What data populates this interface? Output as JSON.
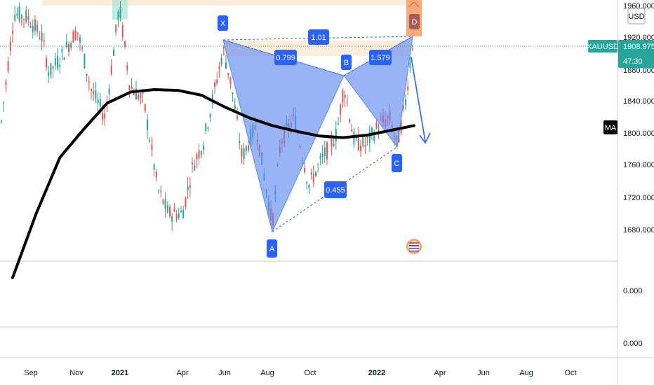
{
  "symbol": "XAUUSD",
  "last_price": "1908.975",
  "countdown": "47:30",
  "currency": "USD",
  "indicator_tag": "MA",
  "price_axis": {
    "labels": [
      "1960.000",
      "1920.000",
      "1880.000",
      "1840.000",
      "1800.000",
      "1760.000",
      "1720.000",
      "1680.000"
    ],
    "values": [
      1960,
      1920,
      1880,
      1840,
      1800,
      1760,
      1720,
      1680
    ]
  },
  "pane_labels": [
    "0.000",
    "0.000"
  ],
  "time_axis": {
    "labels": [
      "Sep",
      "Nov",
      "2021",
      "Apr",
      "Jun",
      "Aug",
      "Oct",
      "2022",
      "Apr",
      "Jun",
      "Aug",
      "Oct"
    ],
    "years": [
      "2021",
      "2022"
    ]
  },
  "pattern": {
    "points": [
      {
        "name": "X",
        "price": 1917
      },
      {
        "name": "A",
        "price": 1677
      },
      {
        "name": "B",
        "price": 1868
      },
      {
        "name": "C",
        "price": 1780
      },
      {
        "name": "D",
        "price": 1918
      }
    ],
    "ratios": {
      "xb": "0.799",
      "xd": "1.01",
      "ac": "0.455",
      "bd": "1.579"
    }
  },
  "colors": {
    "up": "#26a69a",
    "down": "#ef5350",
    "pattern_fill": "#5b86f0",
    "pattern_label": "#2962ff",
    "ma_line": "#000000",
    "price_tag": "#26a69a",
    "d_box": "#f7a26a"
  },
  "chart_data": {
    "type": "line",
    "series": [
      {
        "name": "MA",
        "values": [
          1620,
          1700,
          1770,
          1805,
          1838,
          1852,
          1855,
          1854,
          1848,
          1833,
          1820,
          1810,
          1803,
          1797,
          1795,
          1798,
          1804,
          1810
        ]
      }
    ],
    "ylim": [
      1640,
      1960
    ]
  }
}
